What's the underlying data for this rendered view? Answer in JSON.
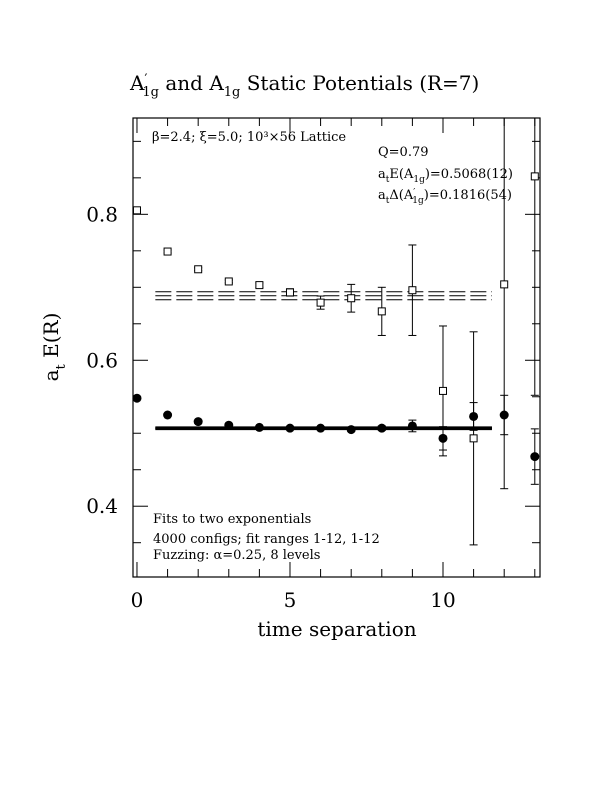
{
  "chart_data": {
    "type": "scatter",
    "title_parts": [
      "A",
      "′",
      "1g",
      " and A",
      "1g",
      " Static Potentials (R=7)"
    ],
    "xlabel": "time separation",
    "ylabel_parts": [
      "a",
      "t",
      " E(R)"
    ],
    "xlim": [
      -0.13,
      13.17
    ],
    "ylim": [
      0.303,
      0.932
    ],
    "xticks": [
      0,
      5,
      10
    ],
    "yticks": [
      0.4,
      0.6,
      0.8
    ],
    "xminorticks": [
      1,
      2,
      3,
      4,
      6,
      7,
      8,
      9,
      11,
      12,
      13
    ],
    "yminorticks": [
      0.35,
      0.45,
      0.5,
      0.55,
      0.65,
      0.7,
      0.75,
      0.85,
      0.9
    ],
    "annotations": {
      "lattice": "β=2.4; ξ=5.0; 10³×56 Lattice",
      "q": "Q=0.79",
      "e_parts": [
        "a",
        "t",
        "E(A",
        "1g",
        ")=0.5068(12)"
      ],
      "d_parts": [
        "a",
        "t",
        "Δ(A",
        "′",
        "1g",
        ")=0.1816(54)"
      ],
      "fits": "Fits to two exponentials",
      "configs": "4000 configs; fit ranges 1-12, 1-12",
      "fuzzing": "Fuzzing: α=0.25, 8 levels"
    },
    "series": [
      {
        "marker": "open-square",
        "color": "#000000",
        "x": [
          0,
          1,
          2,
          3,
          4,
          5,
          6,
          7,
          8,
          9,
          10,
          11,
          12,
          13
        ],
        "values": [
          0.8055,
          0.749,
          0.7247,
          0.708,
          0.703,
          0.693,
          0.679,
          0.685,
          0.667,
          0.696,
          0.558,
          0.493,
          0.704,
          0.852
        ],
        "errors": [
          0.001,
          0.002,
          0.002,
          0.002,
          0.003,
          0.005,
          0.009,
          0.019,
          0.033,
          0.062,
          0.089,
          0.146,
          0.28,
          0.3
        ]
      },
      {
        "marker": "filled-circle",
        "color": "#000000",
        "x": [
          0,
          1,
          2,
          3,
          4,
          5,
          6,
          7,
          8,
          9,
          10,
          11,
          12,
          13
        ],
        "values": [
          0.548,
          0.525,
          0.516,
          0.511,
          0.508,
          0.507,
          0.507,
          0.505,
          0.507,
          0.51,
          0.493,
          0.523,
          0.525,
          0.468
        ],
        "errors": [
          0.001,
          0.001,
          0.001,
          0.001,
          0.001,
          0.001,
          0.002,
          0.002,
          0.003,
          0.008,
          0.016,
          0.019,
          0.027,
          0.038
        ]
      }
    ],
    "fit_bands": [
      {
        "xrange": [
          0.6,
          11.6
        ],
        "value": 0.5068,
        "error": 0.0012,
        "style": "solid"
      },
      {
        "xrange": [
          0.6,
          11.6
        ],
        "value": 0.6884,
        "error": 0.0055,
        "style": "dashed"
      }
    ]
  }
}
